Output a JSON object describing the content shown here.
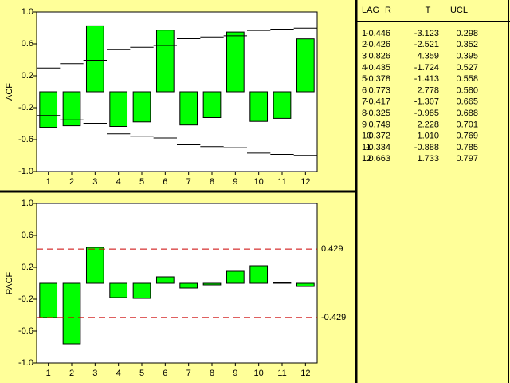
{
  "chart_data": [
    {
      "type": "bar",
      "y_label": "ACF",
      "color": "#00ff00",
      "x": [
        1,
        2,
        3,
        4,
        5,
        6,
        7,
        8,
        9,
        10,
        11,
        12
      ],
      "values": [
        -0.446,
        -0.426,
        0.826,
        -0.435,
        -0.378,
        0.773,
        -0.417,
        -0.325,
        0.749,
        -0.372,
        -0.334,
        0.663
      ],
      "limits": {
        "upper": [
          0.298,
          0.352,
          0.395,
          0.527,
          0.558,
          0.58,
          0.665,
          0.688,
          0.701,
          0.769,
          0.785,
          0.797
        ],
        "lower": [
          -0.298,
          -0.352,
          -0.395,
          -0.527,
          -0.558,
          -0.58,
          -0.665,
          -0.688,
          -0.701,
          -0.769,
          -0.785,
          -0.797
        ]
      },
      "limit_color": "#000000",
      "limit_style": "solid",
      "xlim": [
        0.5,
        12.5
      ],
      "xticks": [
        1,
        2,
        3,
        4,
        5,
        6,
        7,
        8,
        9,
        10,
        11,
        12
      ],
      "ylim": [
        -1,
        1
      ],
      "yticks": [
        {
          "value": -1,
          "label": "-1.0"
        },
        -0.6,
        -0.2,
        0.2,
        0.6,
        {
          "value": 1,
          "label": "1.0"
        }
      ]
    },
    {
      "type": "bar",
      "y_label": "PACF",
      "color": "#00ff00",
      "x": [
        1,
        2,
        3,
        4,
        5,
        6,
        7,
        8,
        9,
        10,
        11,
        12
      ],
      "values": [
        -0.43,
        -0.76,
        0.45,
        -0.18,
        -0.19,
        0.08,
        -0.06,
        -0.02,
        0.15,
        0.22,
        0.01,
        -0.04
      ],
      "limits": {
        "upper": 0.429,
        "lower": -0.429
      },
      "limit_color": "#cc0000",
      "limit_style": "dashed",
      "xlim": [
        0.5,
        12.5
      ],
      "xticks": [
        1,
        2,
        3,
        4,
        5,
        6,
        7,
        8,
        9,
        10,
        11,
        12
      ],
      "ylim": [
        -1,
        1
      ],
      "yticks": [
        {
          "value": -1,
          "label": "-1.0"
        },
        -0.6,
        -0.2,
        0.2,
        0.6,
        {
          "value": 1,
          "label": "1.0"
        }
      ]
    }
  ],
  "table": {
    "columns": [
      "LAG",
      "R",
      "T",
      "UCL"
    ],
    "rows": [
      [
        "1",
        "-0.446",
        "-3.123",
        "0.298"
      ],
      [
        "2",
        "-0.426",
        "-2.521",
        "0.352"
      ],
      [
        "3",
        "0.826",
        "4.359",
        "0.395"
      ],
      [
        "4",
        "-0.435",
        "-1.724",
        "0.527"
      ],
      [
        "5",
        "-0.378",
        "-1.413",
        "0.558"
      ],
      [
        "6",
        "0.773",
        "2.778",
        "0.580"
      ],
      [
        "7",
        "-0.417",
        "-1.307",
        "0.665"
      ],
      [
        "8",
        "-0.325",
        "-0.985",
        "0.688"
      ],
      [
        "9",
        "0.749",
        "2.228",
        "0.701"
      ],
      [
        "10",
        "-0.372",
        "-1.010",
        "0.769"
      ],
      [
        "11",
        "-0.334",
        "-0.888",
        "0.785"
      ],
      [
        "12",
        "0.663",
        "1.733",
        "0.797"
      ]
    ]
  }
}
